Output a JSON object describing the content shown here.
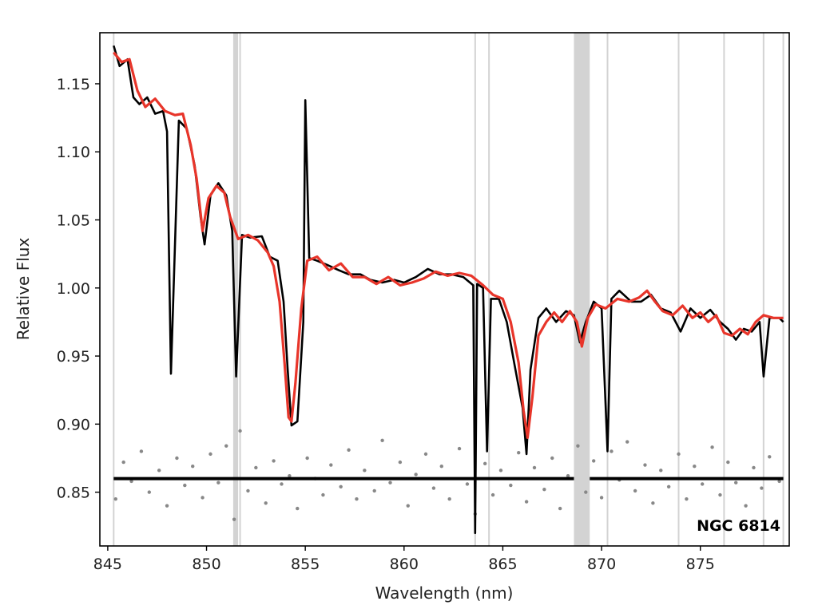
{
  "chart_data": {
    "type": "line",
    "title": "",
    "xlabel": "Wavelength (nm)",
    "ylabel": "Relative Flux",
    "xlim": [
      844.6,
      879.5
    ],
    "ylim": [
      0.8105,
      1.1875
    ],
    "x_ticks": [
      "845",
      "850",
      "855",
      "860",
      "865",
      "870",
      "875"
    ],
    "y_ticks": [
      "0.85",
      "0.90",
      "0.95",
      "1.00",
      "1.05",
      "1.10",
      "1.15"
    ],
    "grid": false,
    "annotation": "NGC 6814",
    "colors": {
      "observed": "#000000",
      "model": "#e8352a",
      "residuals": "#888888",
      "masked_regions": "#d3d3d3",
      "zero_line": "#000000"
    },
    "masked_lines": [
      845.3,
      851.4,
      851.7,
      863.6,
      864.3,
      870.3,
      873.9,
      876.2,
      878.2,
      879.2
    ],
    "masked_bands": [
      [
        851.35,
        851.6
      ],
      [
        868.6,
        869.4
      ]
    ],
    "series": [
      {
        "name": "",
        "role": "observed",
        "x": [
          845.3,
          845.6,
          846.0,
          846.3,
          846.6,
          847.0,
          847.4,
          847.8,
          848.0,
          848.2,
          848.6,
          849.0,
          849.4,
          849.7,
          849.9,
          850.2,
          850.6,
          851.0,
          851.3,
          851.5,
          851.8,
          852.2,
          852.8,
          853.2,
          853.6,
          853.9,
          854.1,
          854.3,
          854.6,
          854.9,
          855.0,
          855.2,
          855.6,
          856.1,
          856.7,
          857.2,
          857.8,
          858.3,
          858.9,
          859.5,
          860.0,
          860.6,
          861.2,
          861.8,
          862.4,
          863.0,
          863.5,
          863.6,
          863.7,
          864.0,
          864.2,
          864.4,
          864.8,
          865.2,
          865.6,
          866.0,
          866.2,
          866.4,
          866.8,
          867.2,
          867.7,
          868.2,
          868.6,
          868.9,
          869.2,
          869.6,
          870.0,
          870.3,
          870.5,
          870.9,
          871.5,
          872.0,
          872.5,
          873.0,
          873.5,
          874.0,
          874.5,
          875.0,
          875.5,
          876.0,
          876.4,
          876.8,
          877.2,
          877.6,
          878.0,
          878.2,
          878.5,
          879.0,
          879.2
        ],
        "y": [
          1.178,
          1.163,
          1.168,
          1.14,
          1.135,
          1.14,
          1.128,
          1.13,
          1.115,
          0.937,
          1.123,
          1.117,
          1.09,
          1.052,
          1.032,
          1.068,
          1.077,
          1.068,
          1.042,
          0.935,
          1.039,
          1.037,
          1.038,
          1.023,
          1.02,
          0.99,
          0.942,
          0.899,
          0.902,
          0.975,
          1.138,
          1.022,
          1.02,
          1.017,
          1.013,
          1.01,
          1.01,
          1.006,
          1.004,
          1.006,
          1.004,
          1.008,
          1.014,
          1.01,
          1.01,
          1.008,
          1.002,
          0.82,
          1.003,
          1.0,
          0.88,
          0.992,
          0.992,
          0.975,
          0.943,
          0.912,
          0.878,
          0.94,
          0.978,
          0.985,
          0.975,
          0.983,
          0.98,
          0.96,
          0.975,
          0.99,
          0.985,
          0.88,
          0.992,
          0.998,
          0.99,
          0.99,
          0.995,
          0.985,
          0.982,
          0.968,
          0.985,
          0.978,
          0.984,
          0.975,
          0.97,
          0.962,
          0.97,
          0.968,
          0.975,
          0.935,
          0.978,
          0.978,
          0.975
        ]
      },
      {
        "name": "",
        "role": "model",
        "x": [
          845.3,
          845.7,
          846.1,
          846.5,
          846.9,
          847.4,
          847.9,
          848.4,
          848.8,
          849.2,
          849.5,
          849.8,
          850.1,
          850.5,
          850.9,
          851.2,
          851.6,
          852.1,
          852.6,
          853.1,
          853.4,
          853.7,
          853.95,
          854.15,
          854.3,
          854.5,
          854.8,
          855.1,
          855.6,
          856.2,
          856.8,
          857.4,
          858.0,
          858.6,
          859.2,
          859.8,
          860.4,
          861.0,
          861.6,
          862.2,
          862.8,
          863.4,
          864.0,
          864.5,
          865.0,
          865.4,
          865.8,
          866.05,
          866.25,
          866.5,
          866.8,
          867.2,
          867.6,
          868.0,
          868.4,
          868.75,
          869.0,
          869.3,
          869.7,
          870.2,
          870.8,
          871.4,
          871.9,
          872.3,
          872.7,
          873.1,
          873.6,
          874.1,
          874.6,
          875.0,
          875.4,
          875.8,
          876.2,
          876.6,
          877.0,
          877.4,
          877.8,
          878.2,
          878.7,
          879.2
        ],
        "y": [
          1.173,
          1.166,
          1.168,
          1.145,
          1.133,
          1.139,
          1.13,
          1.127,
          1.128,
          1.105,
          1.08,
          1.042,
          1.066,
          1.075,
          1.07,
          1.052,
          1.036,
          1.039,
          1.035,
          1.026,
          1.016,
          0.99,
          0.945,
          0.905,
          0.902,
          0.93,
          0.985,
          1.02,
          1.023,
          1.013,
          1.018,
          1.008,
          1.008,
          1.003,
          1.008,
          1.002,
          1.004,
          1.007,
          1.012,
          1.009,
          1.011,
          1.009,
          1.002,
          0.995,
          0.992,
          0.975,
          0.945,
          0.91,
          0.89,
          0.92,
          0.965,
          0.975,
          0.982,
          0.975,
          0.983,
          0.975,
          0.957,
          0.978,
          0.988,
          0.985,
          0.992,
          0.99,
          0.993,
          0.998,
          0.99,
          0.983,
          0.98,
          0.987,
          0.978,
          0.982,
          0.975,
          0.98,
          0.967,
          0.965,
          0.97,
          0.966,
          0.975,
          0.98,
          0.978,
          0.978
        ]
      },
      {
        "name": "",
        "role": "residuals",
        "x": [
          845.4,
          845.8,
          846.2,
          846.7,
          847.1,
          847.6,
          848.0,
          848.5,
          848.9,
          849.3,
          849.8,
          850.2,
          850.6,
          851.0,
          851.4,
          851.7,
          852.1,
          852.5,
          853.0,
          853.4,
          853.8,
          854.2,
          854.6,
          855.1,
          855.5,
          855.9,
          856.3,
          856.8,
          857.2,
          857.6,
          858.0,
          858.5,
          858.9,
          859.3,
          859.8,
          860.2,
          860.6,
          861.1,
          861.5,
          861.9,
          862.3,
          862.8,
          863.2,
          863.6,
          864.1,
          864.5,
          864.9,
          865.4,
          865.8,
          866.2,
          866.6,
          867.1,
          867.5,
          867.9,
          868.3,
          868.8,
          869.2,
          869.6,
          870.0,
          870.5,
          870.9,
          871.3,
          871.7,
          872.2,
          872.6,
          873.0,
          873.4,
          873.9,
          874.3,
          874.7,
          875.1,
          875.6,
          876.0,
          876.4,
          876.8,
          877.3,
          877.7,
          878.1,
          878.5,
          879.0
        ],
        "y": [
          0.845,
          0.872,
          0.858,
          0.88,
          0.85,
          0.866,
          0.84,
          0.875,
          0.855,
          0.869,
          0.846,
          0.878,
          0.857,
          0.884,
          0.83,
          0.895,
          0.851,
          0.868,
          0.842,
          0.873,
          0.856,
          0.862,
          0.838,
          0.875,
          0.86,
          0.848,
          0.87,
          0.854,
          0.881,
          0.845,
          0.866,
          0.851,
          0.888,
          0.857,
          0.872,
          0.84,
          0.863,
          0.878,
          0.853,
          0.869,
          0.845,
          0.882,
          0.856,
          0.834,
          0.871,
          0.848,
          0.866,
          0.855,
          0.879,
          0.843,
          0.868,
          0.852,
          0.875,
          0.838,
          0.862,
          0.884,
          0.85,
          0.873,
          0.846,
          0.88,
          0.859,
          0.887,
          0.851,
          0.87,
          0.842,
          0.866,
          0.854,
          0.878,
          0.845,
          0.869,
          0.856,
          0.883,
          0.848,
          0.872,
          0.857,
          0.84,
          0.868,
          0.853,
          0.876,
          0.858
        ]
      }
    ]
  }
}
